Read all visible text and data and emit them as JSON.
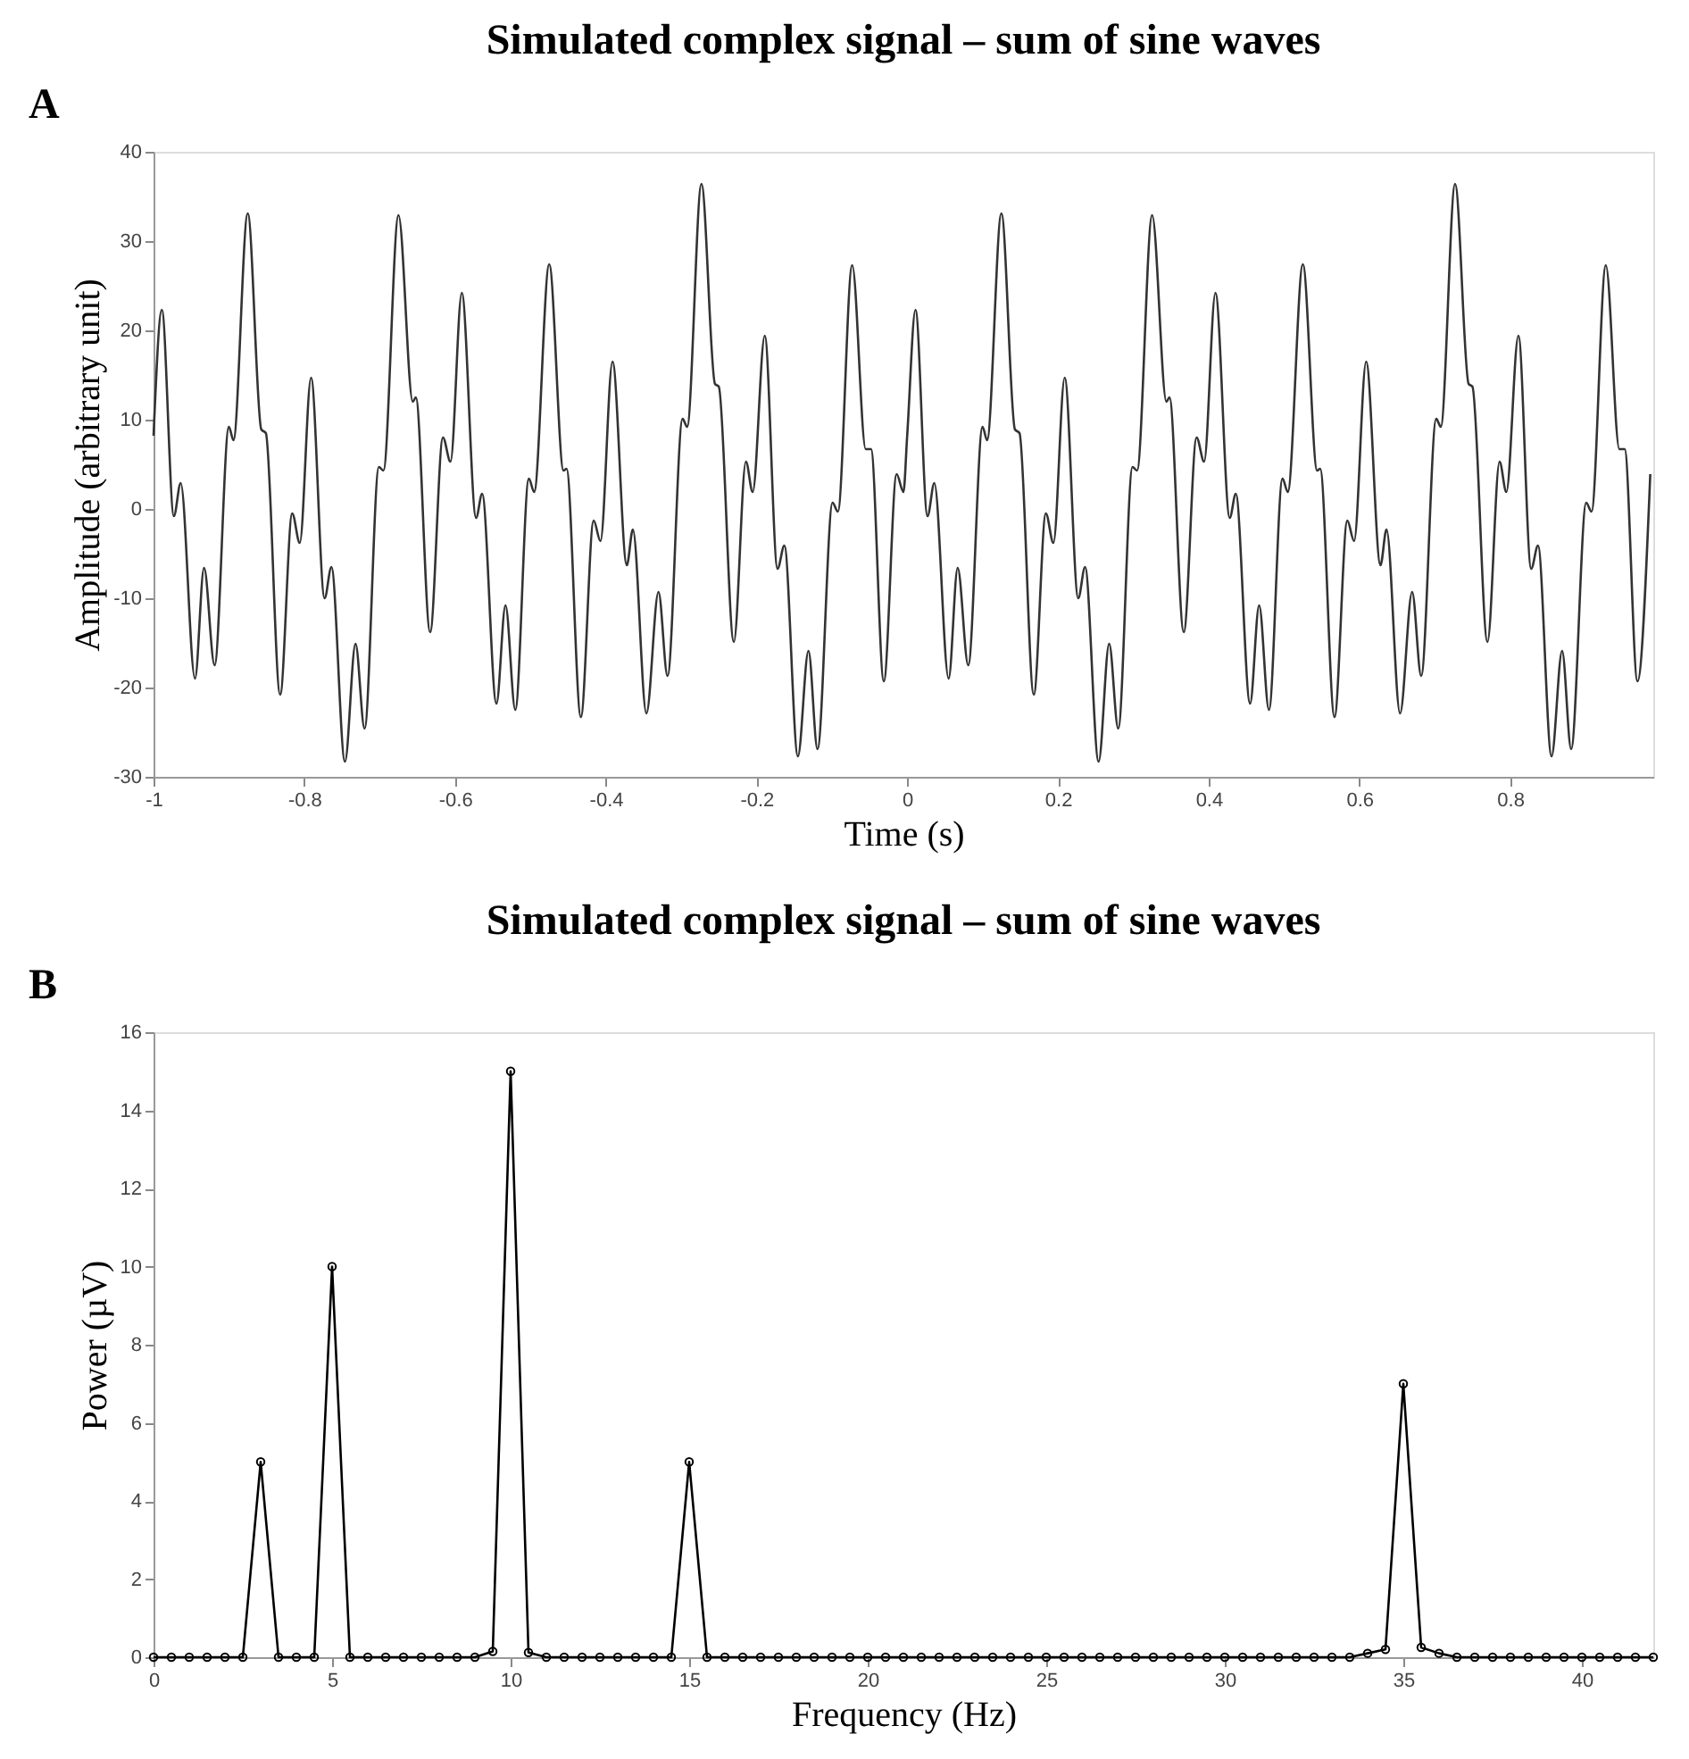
{
  "chart_data": [
    {
      "type": "line",
      "title": "Simulated complex signal – sum of sine waves",
      "annotations": [
        "A"
      ],
      "xlabel": "Time (s)",
      "ylabel": "Amplitude (arbitrary unit)",
      "xlim": [
        -1,
        0.99
      ],
      "xticks": [
        -1,
        -0.8,
        -0.6,
        -0.4,
        -0.2,
        0,
        0.2,
        0.4,
        0.6,
        0.8
      ],
      "ylim": [
        -30,
        40
      ],
      "yticks": [
        -30,
        -20,
        -10,
        0,
        10,
        20,
        30,
        40
      ],
      "grid": false,
      "marker": "none",
      "line_style": "solid",
      "series": [
        {
          "color": "#333333",
          "x": [
            -1.0,
            -0.989,
            -0.973,
            -0.964,
            -0.945,
            -0.933,
            -0.919,
            -0.9,
            -0.894,
            -0.875,
            -0.857,
            -0.851,
            -0.832,
            -0.816,
            -0.806,
            -0.791,
            -0.773,
            -0.764,
            -0.746,
            -0.732,
            -0.72,
            -0.701,
            -0.695,
            -0.675,
            -0.656,
            -0.652,
            -0.633,
            -0.616,
            -0.606,
            -0.591,
            -0.572,
            -0.564,
            -0.545,
            -0.533,
            -0.52,
            -0.502,
            -0.495,
            -0.475,
            -0.456,
            -0.452,
            -0.433,
            -0.416,
            -0.407,
            -0.391,
            -0.372,
            -0.364,
            -0.346,
            -0.33,
            -0.318,
            -0.298,
            -0.292,
            -0.273,
            -0.255,
            -0.25,
            -0.23,
            -0.214,
            -0.205,
            -0.189,
            -0.172,
            -0.163,
            -0.145,
            -0.131,
            -0.119,
            -0.099,
            -0.092,
            -0.073,
            -0.055,
            -0.048,
            -0.031,
            -0.014,
            -0.005,
            0.0,
            0.011,
            0.027,
            0.036,
            0.055,
            0.067,
            0.081,
            0.1,
            0.106,
            0.125,
            0.143,
            0.149,
            0.168,
            0.184,
            0.194,
            0.209,
            0.227,
            0.236,
            0.254,
            0.268,
            0.28,
            0.299,
            0.305,
            0.325,
            0.344,
            0.348,
            0.367,
            0.384,
            0.394,
            0.409,
            0.428,
            0.436,
            0.455,
            0.467,
            0.48,
            0.498,
            0.505,
            0.525,
            0.544,
            0.548,
            0.567,
            0.584,
            0.593,
            0.609,
            0.628,
            0.636,
            0.654,
            0.67,
            0.682,
            0.702,
            0.708,
            0.727,
            0.745,
            0.75,
            0.77,
            0.786,
            0.795,
            0.811,
            0.828,
            0.837,
            0.855,
            0.869,
            0.881,
            0.901,
            0.908,
            0.927,
            0.945,
            0.952,
            0.969,
            0.986
          ],
          "values": [
            8.2,
            22.3,
            -0.8,
            2.9,
            -19.0,
            -6.6,
            -17.5,
            9.2,
            7.7,
            33.1,
            8.9,
            8.5,
            -20.8,
            -0.5,
            -3.8,
            14.7,
            -10.0,
            -6.5,
            -28.3,
            -15.1,
            -24.6,
            4.7,
            4.3,
            32.9,
            12.0,
            12.5,
            -13.8,
            8.0,
            5.3,
            24.2,
            -1.0,
            1.7,
            -21.8,
            -10.8,
            -22.5,
            3.4,
            1.9,
            27.4,
            4.3,
            4.5,
            -23.3,
            -1.3,
            -3.6,
            16.5,
            -6.3,
            -2.3,
            -22.9,
            -9.3,
            -18.7,
            10.1,
            9.2,
            36.4,
            14.0,
            13.7,
            -14.9,
            5.3,
            1.9,
            19.4,
            -6.7,
            -4.1,
            -27.7,
            -15.9,
            -26.9,
            0.7,
            -0.3,
            27.3,
            6.7,
            6.7,
            -19.3,
            3.9,
            1.9,
            8.2,
            22.3,
            -0.8,
            2.9,
            -19.0,
            -6.6,
            -17.5,
            9.2,
            7.7,
            33.1,
            8.9,
            8.5,
            -20.8,
            -0.5,
            -3.8,
            14.7,
            -10.0,
            -6.5,
            -28.3,
            -15.1,
            -24.6,
            4.7,
            4.3,
            32.9,
            12.0,
            12.5,
            -13.8,
            8.0,
            5.3,
            24.2,
            -1.0,
            1.7,
            -21.8,
            -10.8,
            -22.5,
            3.4,
            1.9,
            27.4,
            4.3,
            4.5,
            -23.3,
            -1.3,
            -3.6,
            16.5,
            -6.3,
            -2.3,
            -22.9,
            -9.3,
            -18.7,
            10.1,
            9.2,
            36.4,
            14.0,
            13.7,
            -14.9,
            5.3,
            1.9,
            19.4,
            -6.7,
            -4.1,
            -27.7,
            -15.9,
            -26.9,
            0.7,
            -0.3,
            27.3,
            6.7,
            6.7,
            -19.3,
            3.9
          ]
        }
      ]
    },
    {
      "type": "line",
      "title": "Simulated complex signal – sum of sine waves",
      "annotations": [
        "B"
      ],
      "xlabel": "Frequency (Hz)",
      "ylabel": "Power (µV)",
      "xlim": [
        0,
        42
      ],
      "xticks": [
        0,
        5,
        10,
        15,
        20,
        25,
        30,
        35,
        40
      ],
      "ylim": [
        0,
        16
      ],
      "yticks": [
        0,
        2,
        4,
        6,
        8,
        10,
        12,
        14,
        16
      ],
      "grid": false,
      "marker": "circle",
      "line_style": "solid",
      "series": [
        {
          "color": "#000000",
          "x": [
            0,
            0.5,
            1,
            1.5,
            2,
            2.5,
            3,
            3.5,
            4,
            4.5,
            5,
            5.5,
            6,
            6.5,
            7,
            7.5,
            8,
            8.5,
            9,
            9.5,
            10,
            10.5,
            11,
            11.5,
            12,
            12.5,
            13,
            13.5,
            14,
            14.5,
            15,
            15.5,
            16,
            16.5,
            17,
            17.5,
            18,
            18.5,
            19,
            19.5,
            20,
            20.5,
            21,
            21.5,
            22,
            22.5,
            23,
            23.5,
            24,
            24.5,
            25,
            25.5,
            26,
            26.5,
            27,
            27.5,
            28,
            28.5,
            29,
            29.5,
            30,
            30.5,
            31,
            31.5,
            32,
            32.5,
            33,
            33.5,
            34,
            34.5,
            35,
            35.5,
            36,
            36.5,
            37,
            37.5,
            38,
            38.5,
            39,
            39.5,
            40,
            40.5,
            41,
            41.5,
            42
          ],
          "values": [
            0,
            0,
            0,
            0,
            0,
            0,
            5,
            0,
            0,
            0,
            10,
            0,
            0,
            0,
            0,
            0,
            0,
            0,
            0,
            0.15,
            15,
            0.12,
            0,
            0,
            0,
            0,
            0,
            0,
            0,
            0,
            5,
            0,
            0,
            0,
            0,
            0,
            0,
            0,
            0,
            0,
            0,
            0,
            0,
            0,
            0,
            0,
            0,
            0,
            0,
            0,
            0,
            0,
            0,
            0,
            0,
            0,
            0,
            0,
            0,
            0,
            0,
            0,
            0,
            0,
            0,
            0,
            0,
            0,
            0.1,
            0.2,
            7,
            0.25,
            0.1,
            0,
            0,
            0,
            0,
            0,
            0,
            0,
            0,
            0,
            0,
            0,
            0
          ]
        }
      ]
    }
  ]
}
